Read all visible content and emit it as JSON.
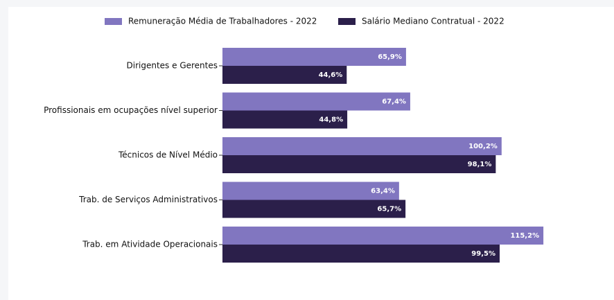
{
  "chart_data": {
    "type": "barh",
    "categories": [
      "Dirigentes e Gerentes",
      "Profissionais em ocupações nível superior",
      "Técnicos de Nível Médio",
      "Trab. de Serviços Administrativos",
      "Trab. em Atividade Operacionais"
    ],
    "series": [
      {
        "name": "Remuneração Média de Trabalhadores - 2022",
        "color": "#8176c0",
        "values": [
          65.9,
          67.4,
          100.2,
          63.4,
          115.2
        ],
        "value_labels": [
          "65,9%",
          "67,4%",
          "100,2%",
          "63,4%",
          "115,2%"
        ]
      },
      {
        "name": "Salário Mediano Contratual - 2022",
        "color": "#2b1f4a",
        "values": [
          44.6,
          44.8,
          98.1,
          65.7,
          99.5
        ],
        "value_labels": [
          "44,6%",
          "44,8%",
          "98,1%",
          "65,7%",
          "99,5%"
        ]
      }
    ],
    "xlim": [
      0,
      130
    ],
    "legend": "top"
  }
}
